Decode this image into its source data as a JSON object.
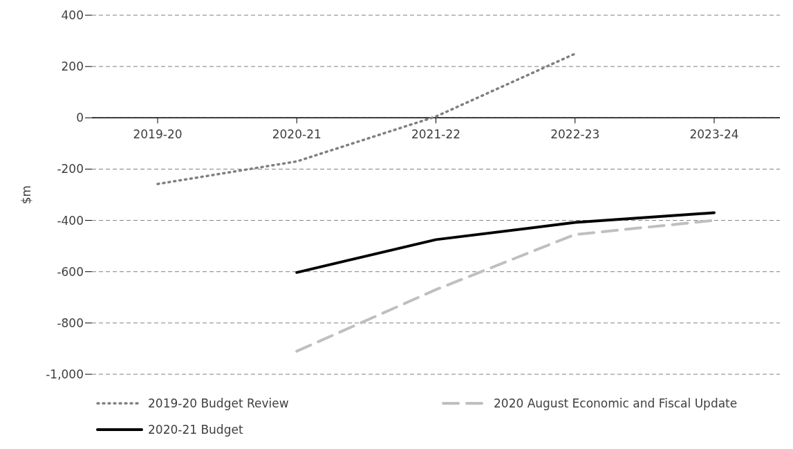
{
  "chart_data": {
    "type": "line",
    "ylabel": "$m",
    "categories": [
      "2019-20",
      "2020-21",
      "2021-22",
      "2022-23",
      "2023-24"
    ],
    "series": [
      {
        "name": "2019-20 Budget Review",
        "color": "#808080",
        "line_style": "dotted",
        "values": [
          -258,
          -170,
          5,
          250,
          null
        ]
      },
      {
        "name": "2020 August Economic and Fiscal Update",
        "color": "#bfbfbf",
        "line_style": "dashed",
        "values": [
          null,
          -910,
          -670,
          -455,
          -400
        ]
      },
      {
        "name": "2020-21 Budget",
        "color": "#000000",
        "line_style": "solid",
        "values": [
          null,
          -603,
          -475,
          -408,
          -370
        ]
      }
    ],
    "ylim": [
      -1000,
      400
    ],
    "yticks": [
      {
        "value": -1000,
        "label": "-1,000"
      },
      -800,
      -600,
      -400,
      -200,
      0,
      200,
      400
    ],
    "grid": "y",
    "legend": "bottom",
    "marker": "none"
  }
}
